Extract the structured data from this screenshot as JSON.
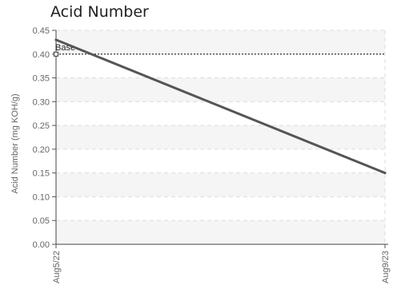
{
  "chart_data": {
    "type": "line",
    "title": "Acid Number",
    "xlabel": "",
    "ylabel": "Acid Number (mg KOH/g)",
    "x": [
      "Aug5/22",
      "Aug9/23"
    ],
    "series": [
      {
        "values": [
          0.43,
          0.15
        ],
        "color": "#555555"
      }
    ],
    "ylim": [
      0,
      0.45
    ],
    "yticks": [
      "0.00",
      "0.05",
      "0.10",
      "0.15",
      "0.20",
      "0.25",
      "0.30",
      "0.35",
      "0.40",
      "0.45"
    ],
    "reference_line": {
      "label": "Base",
      "value": 0.4,
      "style": "dotted",
      "color": "#333333"
    },
    "grid": true,
    "band_color": "#f5f5f5",
    "grid_color": "#dddddd"
  }
}
